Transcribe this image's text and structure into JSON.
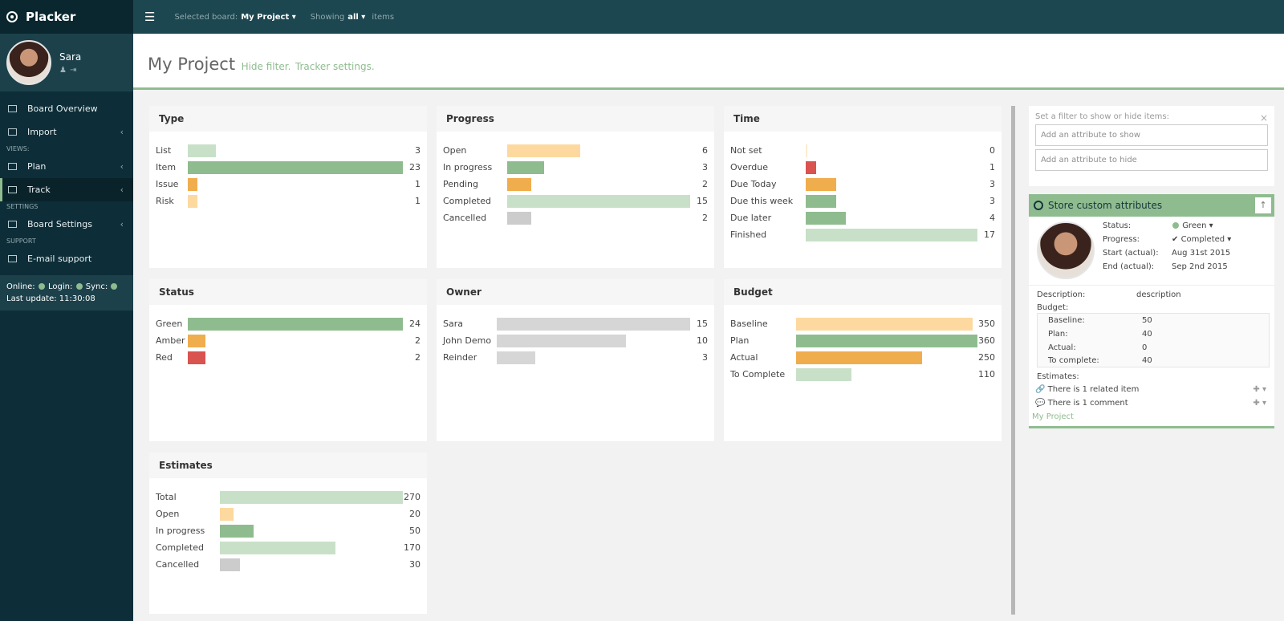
{
  "app": {
    "name": "Placker"
  },
  "user": {
    "name": "Sara",
    "icons": [
      "user-icon",
      "logout-icon"
    ]
  },
  "nav": {
    "board_overview": "Board Overview",
    "import": "Import",
    "views_label": "VIEWS:",
    "plan": "Plan",
    "track": "Track",
    "settings_label": "SETTINGS",
    "board_settings": "Board Settings",
    "support_label": "SUPPORT",
    "email_support": "E-mail support"
  },
  "status": {
    "online": "Online:",
    "login": "Login:",
    "sync": "Sync:",
    "last_update": "Last update: 11:30:08"
  },
  "topbar": {
    "selected_board_label": "Selected board:",
    "selected_board": "My Project",
    "showing_label": "Showing",
    "showing_value": "all",
    "items_label": "items"
  },
  "page": {
    "title": "My Project",
    "hide_filter": "Hide filter.",
    "tracker_settings": "Tracker settings."
  },
  "cards": {
    "type": {
      "title": "Type",
      "max": 23,
      "rows": [
        {
          "label": "List",
          "value": 3,
          "color": "#c8e0c8"
        },
        {
          "label": "Item",
          "value": 23,
          "color": "#8fbc8f"
        },
        {
          "label": "Issue",
          "value": 1,
          "color": "#f0ad4e"
        },
        {
          "label": "Risk",
          "value": 1,
          "color": "#fdd9a0"
        }
      ]
    },
    "progress": {
      "title": "Progress",
      "max": 15,
      "rows": [
        {
          "label": "Open",
          "value": 6,
          "color": "#fdd9a0"
        },
        {
          "label": "In progress",
          "value": 3,
          "color": "#8fbc8f"
        },
        {
          "label": "Pending",
          "value": 2,
          "color": "#f0ad4e"
        },
        {
          "label": "Completed",
          "value": 15,
          "color": "#c8e0c8"
        },
        {
          "label": "Cancelled",
          "value": 2,
          "color": "#cccccc"
        }
      ]
    },
    "time": {
      "title": "Time",
      "max": 17,
      "rows": [
        {
          "label": "Not set",
          "value": 0,
          "color": "#fdd9a0"
        },
        {
          "label": "Overdue",
          "value": 1,
          "color": "#d9534f"
        },
        {
          "label": "Due Today",
          "value": 3,
          "color": "#f0ad4e"
        },
        {
          "label": "Due this week",
          "value": 3,
          "color": "#8fbc8f"
        },
        {
          "label": "Due later",
          "value": 4,
          "color": "#8fbc8f"
        },
        {
          "label": "Finished",
          "value": 17,
          "color": "#c8e0c8"
        }
      ]
    },
    "status": {
      "title": "Status",
      "max": 24,
      "rows": [
        {
          "label": "Green",
          "value": 24,
          "color": "#8fbc8f"
        },
        {
          "label": "Amber",
          "value": 2,
          "color": "#f0ad4e"
        },
        {
          "label": "Red",
          "value": 2,
          "color": "#d9534f"
        }
      ]
    },
    "owner": {
      "title": "Owner",
      "max": 15,
      "rows": [
        {
          "label": "Sara",
          "value": 15,
          "color": "#d6d6d6"
        },
        {
          "label": "John Demo",
          "value": 10,
          "color": "#d6d6d6"
        },
        {
          "label": "Reinder",
          "value": 3,
          "color": "#d6d6d6"
        }
      ]
    },
    "budget": {
      "title": "Budget",
      "max": 360,
      "rows": [
        {
          "label": "Baseline",
          "value": 350,
          "color": "#fdd9a0"
        },
        {
          "label": "Plan",
          "value": 360,
          "color": "#8fbc8f"
        },
        {
          "label": "Actual",
          "value": 250,
          "color": "#f0ad4e"
        },
        {
          "label": "To Complete",
          "value": 110,
          "color": "#c8e0c8"
        }
      ]
    },
    "estimates": {
      "title": "Estimates",
      "max": 270,
      "rows": [
        {
          "label": "Total",
          "value": 270,
          "color": "#c8e0c8"
        },
        {
          "label": "Open",
          "value": 20,
          "color": "#fdd9a0"
        },
        {
          "label": "In progress",
          "value": 50,
          "color": "#8fbc8f"
        },
        {
          "label": "Completed",
          "value": 170,
          "color": "#c8e0c8"
        },
        {
          "label": "Cancelled",
          "value": 30,
          "color": "#cccccc"
        }
      ]
    }
  },
  "filter": {
    "hint": "Set a filter to show or hide items:",
    "show_placeholder": "Add an attribute to show",
    "hide_placeholder": "Add an attribute to hide"
  },
  "item": {
    "title": "Store custom attributes",
    "status_label": "Status:",
    "status_value": "Green",
    "progress_label": "Progress:",
    "progress_value": "Completed",
    "start_label": "Start (actual):",
    "start_value": "Aug 31st 2015",
    "end_label": "End (actual):",
    "end_value": "Sep 2nd 2015",
    "description_label": "Description:",
    "description_value": "description",
    "budget_label": "Budget:",
    "budget": {
      "baseline_label": "Baseline:",
      "baseline": "50",
      "plan_label": "Plan:",
      "plan": "40",
      "actual_label": "Actual:",
      "actual": "0",
      "to_complete_label": "To complete:",
      "to_complete": "40"
    },
    "estimates_label": "Estimates:",
    "related": "There is 1 related item",
    "comment": "There is 1 comment",
    "board": "My Project"
  }
}
